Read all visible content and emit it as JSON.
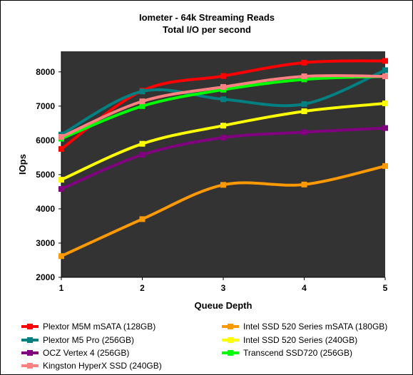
{
  "chart_data": {
    "type": "line",
    "title": "Iometer - 64k  Streaming Reads",
    "subtitle": "Total I/O per second",
    "xlabel": "Queue Depth",
    "ylabel": "IOps",
    "x": [
      1,
      2,
      3,
      4,
      5
    ],
    "ylim": [
      2000,
      8600
    ],
    "yticks": [
      2000,
      3000,
      4000,
      5000,
      6000,
      7000,
      8000
    ],
    "grid": false,
    "plot_background": "#333333",
    "legend_position": "bottom",
    "series": [
      {
        "name": "Plextor M5M mSATA (128GB)",
        "color": "#ff0000",
        "values": [
          5750,
          7450,
          7880,
          8270,
          8320
        ]
      },
      {
        "name": "Intel SSD 520 Series mSATA (180GB)",
        "color": "#ff9900",
        "values": [
          2620,
          3700,
          4700,
          4710,
          5250
        ]
      },
      {
        "name": "Plextor M5 Pro (256GB)",
        "color": "#008080",
        "values": [
          6170,
          7430,
          7200,
          7060,
          8050
        ]
      },
      {
        "name": "Intel SSD 520 Series (240GB)",
        "color": "#ffff00",
        "values": [
          4850,
          5900,
          6430,
          6850,
          7080
        ]
      },
      {
        "name": "OCZ Vertex 4 (256GB)",
        "color": "#800080",
        "values": [
          4580,
          5580,
          6080,
          6240,
          6360
        ]
      },
      {
        "name": "Transcend SSD720 (256GB)",
        "color": "#00ff00",
        "values": [
          6050,
          7000,
          7480,
          7780,
          7870
        ]
      },
      {
        "name": "Kingston HyperX SSD (240GB)",
        "color": "#ff8080",
        "values": [
          6100,
          7140,
          7560,
          7870,
          7870
        ]
      }
    ]
  }
}
